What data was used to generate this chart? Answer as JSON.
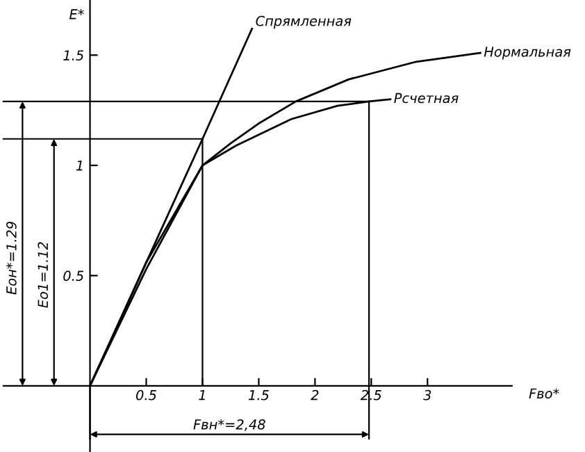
{
  "chart_data": {
    "type": "line",
    "xlabel": "Fво*",
    "ylabel": "Е*",
    "xlim": [
      -0.8,
      4.4
    ],
    "ylim": [
      -0.3,
      1.75
    ],
    "xticks": [
      {
        "value": 0.5,
        "label": "0.5"
      },
      1,
      {
        "value": 1.5,
        "label": "1.5"
      },
      2,
      {
        "value": 2.5,
        "label": "2.5"
      },
      3
    ],
    "yticks": [
      {
        "value": 0.5,
        "label": "0.5"
      },
      1,
      {
        "value": 1.5,
        "label": "1.5"
      }
    ],
    "grid": false,
    "legend": false,
    "marker": "none",
    "line_style": "solid",
    "series": [
      {
        "name": "Спрямленная",
        "color": "#000000",
        "x": [
          0,
          1,
          1.44
        ],
        "values": [
          0,
          1.12,
          1.62
        ]
      },
      {
        "name": "Нормальная",
        "color": "#000000",
        "x": [
          0,
          0.5,
          1,
          1.25,
          1.5,
          1.83,
          2.3,
          2.9,
          3.47
        ],
        "values": [
          0,
          0.53,
          1,
          1.1,
          1.19,
          1.29,
          1.39,
          1.47,
          1.51
        ]
      },
      {
        "name": "Рсчетная",
        "color": "#000000",
        "x": [
          0,
          0.5,
          1,
          1.3,
          1.79,
          2.2,
          2.48,
          2.67
        ],
        "values": [
          0,
          0.56,
          1,
          1.09,
          1.21,
          1.27,
          1.29,
          1.3
        ]
      }
    ],
    "ref_lines": [
      {
        "axis": "y",
        "value": 1.29,
        "color": "#000000"
      },
      {
        "axis": "y",
        "value": 1.12,
        "color": "#000000"
      },
      {
        "axis": "x",
        "value": 1,
        "color": "#000000"
      },
      {
        "axis": "x",
        "value": 2.48,
        "color": "#000000"
      }
    ],
    "annotations": [
      "Еон*=1.29",
      "Ео1=1.12",
      "Fвн*=2,48"
    ]
  }
}
